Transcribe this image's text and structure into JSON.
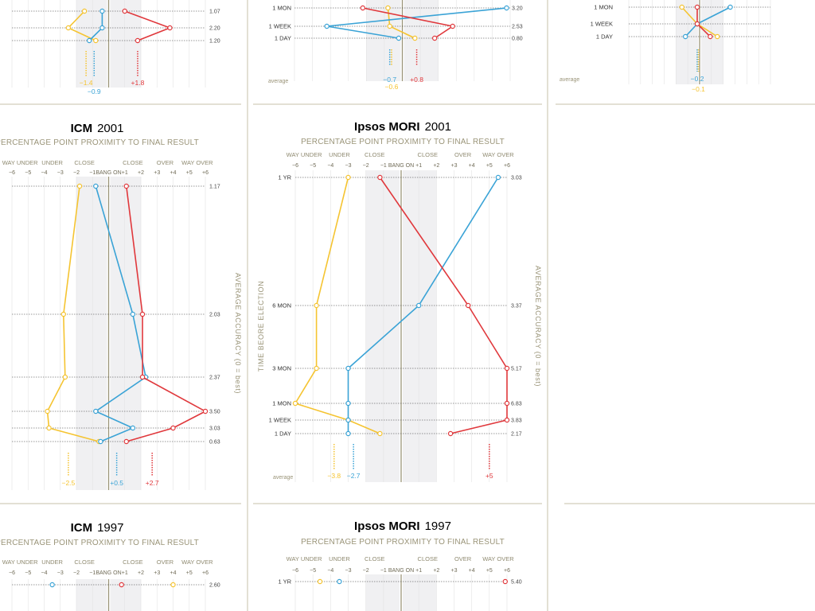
{
  "colors": {
    "yellow": "#f5c431",
    "blue": "#3aa3d6",
    "red": "#e0383c",
    "band": "#f0f0f2",
    "panel_rule": "#c7c2a8",
    "accent_text": "#9a9478"
  },
  "axis": {
    "categories": [
      "WAY UNDER",
      "UNDER",
      "CLOSE",
      "CLOSE",
      "OVER",
      "WAY OVER"
    ],
    "ticks": [
      "−6",
      "−5",
      "−4",
      "−3",
      "−2",
      "−1",
      "BANG ON",
      "+1",
      "+2",
      "+3",
      "+4",
      "+5",
      "+6"
    ],
    "range": [
      -6,
      6
    ]
  },
  "labels": {
    "subtitle": "PERCENTAGE POINT PROXIMITY TO FINAL RESULT",
    "y_axis": "TIME BEORE ELECTION",
    "acc_axis": "AVERAGE ACCURACY  (0 = best)",
    "average": "average"
  },
  "chart_data": [
    {
      "type": "line",
      "pollster": "",
      "year": "",
      "rows": [
        "1 MON",
        "1 WEEK",
        "1 DAY"
      ],
      "accuracy": [
        "3.20",
        "2.53",
        "0.80"
      ],
      "series": [
        {
          "color": "yellow",
          "values": [
            -0.8,
            -0.7,
            0.7
          ]
        },
        {
          "color": "blue",
          "values": [
            5.8,
            -4.2,
            -0.2
          ]
        },
        {
          "color": "red",
          "values": [
            -2.2,
            2.8,
            1.8
          ]
        }
      ],
      "averages": [
        {
          "color": "yellow",
          "value": "−0.6"
        },
        {
          "color": "blue",
          "value": "−0.7"
        },
        {
          "color": "red",
          "value": "+0.8"
        }
      ]
    },
    {
      "type": "line",
      "pollster": "ICM",
      "year": "2001",
      "rows": [
        "",
        "",
        "",
        "",
        "",
        ""
      ],
      "accuracy": [
        "1.17",
        "2.03",
        "2.37",
        "3.50",
        "3.03",
        "0.63"
      ],
      "series": [
        {
          "color": "yellow",
          "values": [
            -1.8,
            -2.8,
            -2.7,
            -3.8,
            -3.7,
            -0.6
          ]
        },
        {
          "color": "blue",
          "values": [
            -0.8,
            1.5,
            2.3,
            -0.8,
            1.5,
            -0.5
          ]
        },
        {
          "color": "red",
          "values": [
            1.1,
            2.1,
            2.1,
            6.0,
            4.0,
            1.1
          ]
        }
      ],
      "averages": [
        {
          "color": "yellow",
          "value": "−2.5"
        },
        {
          "color": "blue",
          "value": "+0.5"
        },
        {
          "color": "red",
          "value": "+2.7"
        }
      ]
    },
    {
      "type": "line",
      "pollster": "Ipsos MORI",
      "year": "2001",
      "rows": [
        "1 YR",
        "6 MON",
        "3 MON",
        "1 MON",
        "1 WEEK",
        "1 DAY"
      ],
      "accuracy": [
        "3.03",
        "3.37",
        "5.17",
        "6.83",
        "3.83",
        "2.17"
      ],
      "series": [
        {
          "color": "yellow",
          "values": [
            -3.0,
            -4.8,
            -4.8,
            -6.0,
            -3.0,
            -1.2
          ]
        },
        {
          "color": "blue",
          "values": [
            5.5,
            1.0,
            -3.0,
            -3.0,
            -3.0,
            -3.0
          ]
        },
        {
          "color": "red",
          "values": [
            -1.2,
            3.8,
            6.0,
            6.0,
            6.0,
            2.8
          ]
        }
      ],
      "averages": [
        {
          "color": "yellow",
          "value": "−3.8"
        },
        {
          "color": "blue",
          "value": "−2.7"
        },
        {
          "color": "red",
          "value": "+5"
        }
      ]
    },
    {
      "type": "line",
      "pollster": "",
      "year": "",
      "rows": [
        "1 MON",
        "1 WEEK",
        "1 DAY"
      ],
      "accuracy": [
        "",
        "",
        ""
      ],
      "series": [
        {
          "color": "yellow",
          "values": [
            -1.5,
            -0.2,
            1.5
          ]
        },
        {
          "color": "blue",
          "values": [
            2.6,
            -0.2,
            -1.2
          ]
        },
        {
          "color": "red",
          "values": [
            -0.2,
            -0.2,
            0.9
          ]
        }
      ],
      "averages": [
        {
          "color": "blue",
          "value": "−0.2"
        },
        {
          "color": "yellow",
          "value": "−0.1"
        }
      ]
    },
    {
      "type": "line",
      "pollster": "",
      "year": "",
      "rows": [],
      "accuracy": [
        "1.07",
        "2.20",
        "1.20"
      ],
      "series": [
        {
          "color": "yellow",
          "values": [
            -1.5,
            -2.5,
            -0.8
          ]
        },
        {
          "color": "blue",
          "values": [
            -0.4,
            -0.4,
            -1.2
          ]
        },
        {
          "color": "red",
          "values": [
            1.0,
            3.8,
            1.8
          ]
        }
      ],
      "averages": [
        {
          "color": "yellow",
          "value": "−1.4"
        },
        {
          "color": "blue",
          "value": "−0.9"
        },
        {
          "color": "red",
          "value": "+1.8"
        }
      ]
    },
    {
      "type": "line",
      "pollster": "ICM",
      "year": "1997",
      "rows": [],
      "accuracy": [
        "2.60"
      ],
      "series": [
        {
          "color": "yellow",
          "values": [
            4.0
          ]
        },
        {
          "color": "blue",
          "values": [
            -3.5
          ]
        },
        {
          "color": "red",
          "values": [
            0.8
          ]
        }
      ],
      "averages": []
    },
    {
      "type": "line",
      "pollster": "Ipsos MORI",
      "year": "1997",
      "rows": [
        "1 YR"
      ],
      "accuracy": [
        "5.40"
      ],
      "series": [
        {
          "color": "yellow",
          "values": [
            -4.6
          ]
        },
        {
          "color": "blue",
          "values": [
            -3.5
          ]
        },
        {
          "color": "red",
          "values": [
            5.9
          ]
        }
      ],
      "averages": []
    }
  ]
}
